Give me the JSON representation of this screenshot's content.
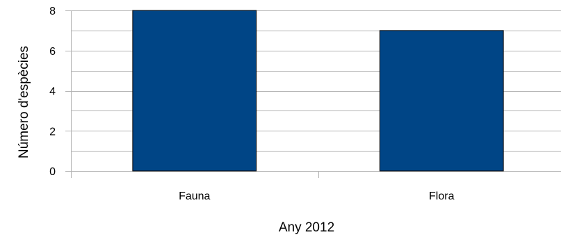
{
  "chart_data": {
    "type": "bar",
    "categories": [
      "Fauna",
      "Flora"
    ],
    "values": [
      8,
      7
    ],
    "title": "",
    "xlabel": "Any 2012",
    "ylabel": "Número d'espècies",
    "ylim": [
      0,
      8
    ],
    "yticks": [
      "0",
      "2",
      "4",
      "6",
      "8"
    ],
    "grid": true,
    "legend": "none",
    "colors": {
      "bar": "#004586",
      "bar_stroke": "#000000",
      "grid": "#b3b3b3"
    }
  }
}
